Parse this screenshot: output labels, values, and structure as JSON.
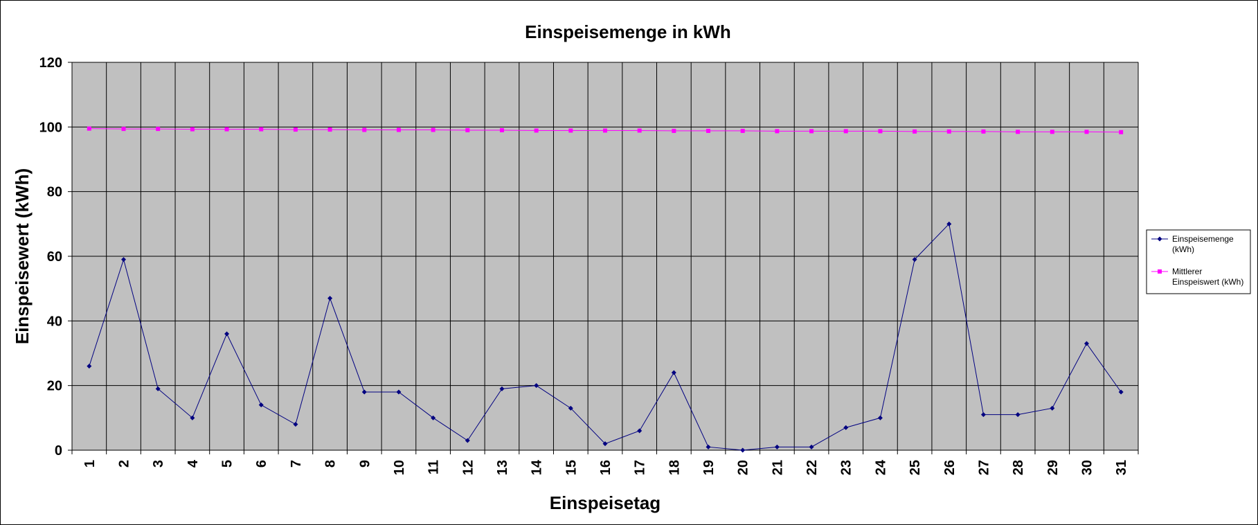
{
  "chart_data": {
    "type": "line",
    "title": "Einspeisemenge in kWh",
    "xlabel": "Einspeisetag",
    "ylabel": "Einspeisewert  (kWh)",
    "categories": [
      "1",
      "2",
      "3",
      "4",
      "5",
      "6",
      "7",
      "8",
      "9",
      "10",
      "11",
      "12",
      "13",
      "14",
      "15",
      "16",
      "17",
      "18",
      "19",
      "20",
      "21",
      "22",
      "23",
      "24",
      "25",
      "26",
      "27",
      "28",
      "29",
      "30",
      "31"
    ],
    "ylim": [
      0,
      120
    ],
    "yticks": [
      "0",
      "20",
      "40",
      "60",
      "80",
      "100",
      "120"
    ],
    "grid": true,
    "legend_position": "right",
    "series": [
      {
        "name": "Einspeisemenge (kWh)",
        "legend_lines": [
          "Einspeisemenge",
          "(kWh)"
        ],
        "color": "#000080",
        "marker": "diamond",
        "values": [
          26,
          59,
          19,
          10,
          36,
          14,
          8,
          47,
          18,
          18,
          10,
          3,
          19,
          20,
          13,
          2,
          6,
          24,
          1,
          0,
          1,
          1,
          7,
          10,
          59,
          70,
          11,
          11,
          13,
          33,
          18
        ]
      },
      {
        "name": "Mittlerer Einspeiswert (kWh)",
        "legend_lines": [
          "Mittlerer",
          "Einspeiswert (kWh)"
        ],
        "color": "#ff00ff",
        "marker": "square",
        "values": [
          99.5,
          99.4,
          99.4,
          99.3,
          99.3,
          99.3,
          99.2,
          99.2,
          99.1,
          99.1,
          99.1,
          99.0,
          99.0,
          98.9,
          98.9,
          98.9,
          98.9,
          98.8,
          98.8,
          98.8,
          98.7,
          98.7,
          98.7,
          98.7,
          98.6,
          98.6,
          98.6,
          98.5,
          98.5,
          98.5,
          98.4
        ]
      }
    ]
  }
}
